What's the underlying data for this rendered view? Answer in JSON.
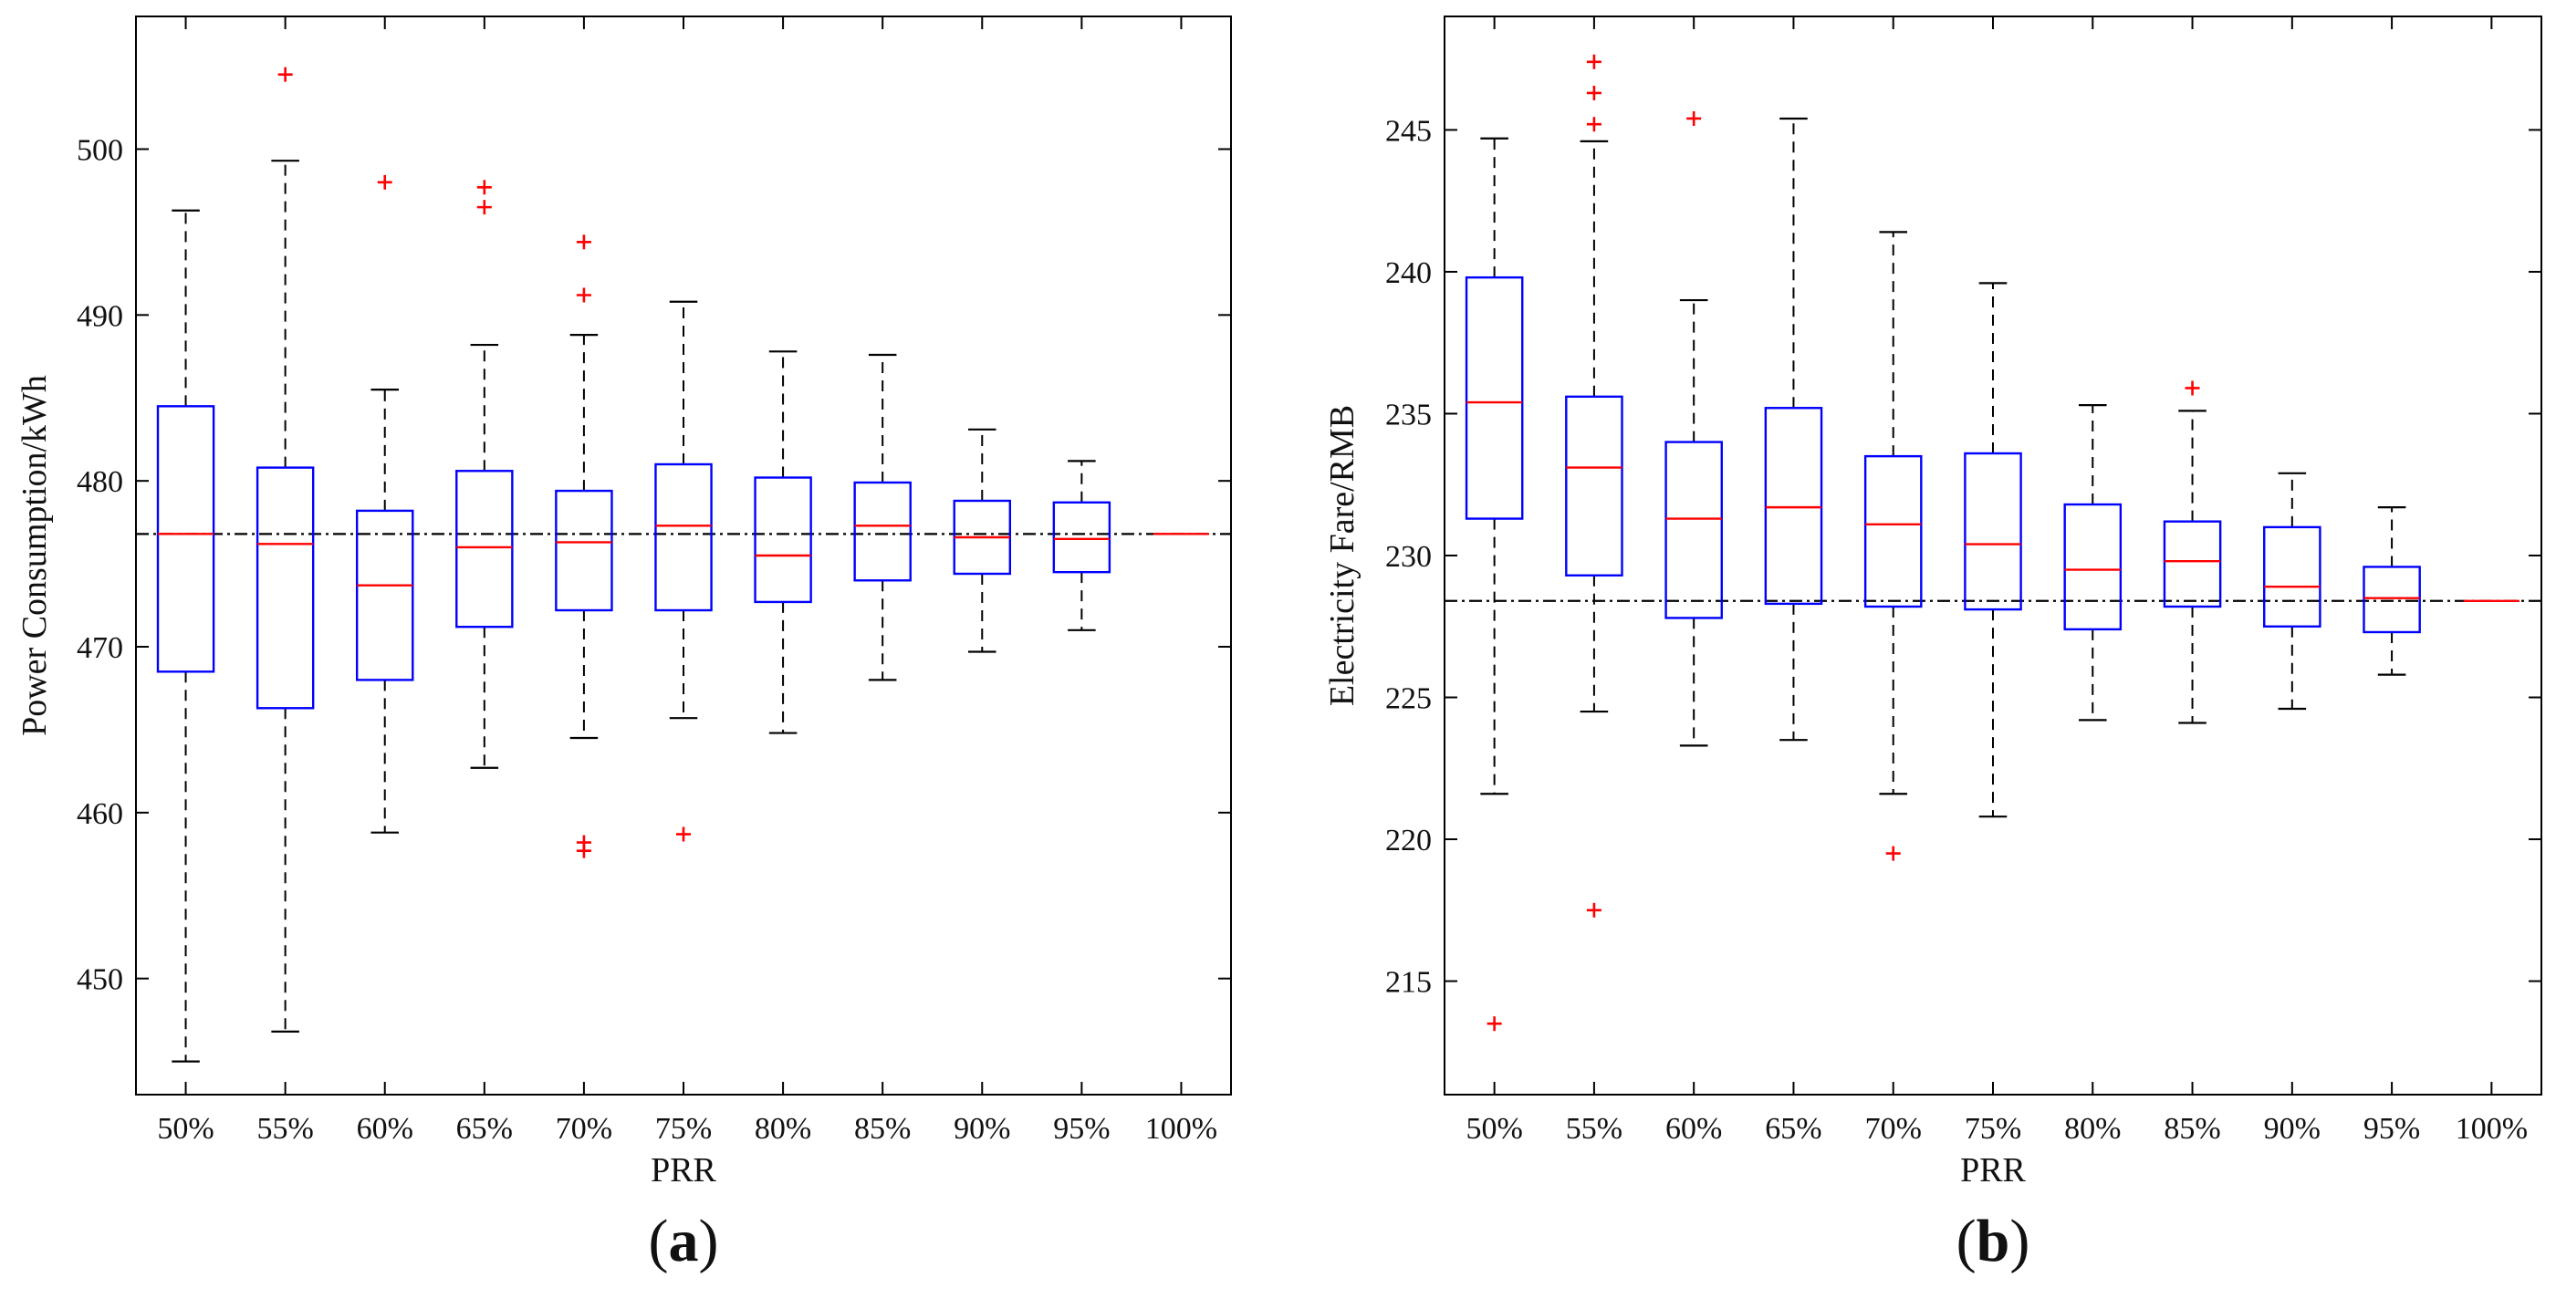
{
  "chart_data": [
    {
      "panel": "a",
      "type": "box",
      "xlabel": "PRR",
      "ylabel": "Power Consumption/kWh",
      "categories": [
        "50%",
        "55%",
        "60%",
        "65%",
        "70%",
        "75%",
        "80%",
        "85%",
        "90%",
        "95%",
        "100%"
      ],
      "ylim": [
        443,
        508
      ],
      "yticks": [
        450,
        460,
        470,
        480,
        490,
        500
      ],
      "reference_line": 476.8,
      "colors": {
        "box": "#0000ff",
        "median": "#ff0000",
        "whisker": "#000000",
        "outlier": "#ff0000",
        "reference": "#000000"
      },
      "boxes": [
        {
          "whisker_low": 445.0,
          "q1": 468.5,
          "median": 476.8,
          "q3": 484.5,
          "whisker_high": 496.3,
          "outliers": []
        },
        {
          "whisker_low": 446.8,
          "q1": 466.3,
          "median": 476.2,
          "q3": 480.8,
          "whisker_high": 499.3,
          "outliers": [
            504.5
          ]
        },
        {
          "whisker_low": 458.8,
          "q1": 468.0,
          "median": 473.7,
          "q3": 478.2,
          "whisker_high": 485.5,
          "outliers": [
            498.0
          ]
        },
        {
          "whisker_low": 462.7,
          "q1": 471.2,
          "median": 476.0,
          "q3": 480.6,
          "whisker_high": 488.2,
          "outliers": [
            496.5,
            497.7
          ]
        },
        {
          "whisker_low": 464.5,
          "q1": 472.2,
          "median": 476.3,
          "q3": 479.4,
          "whisker_high": 488.8,
          "outliers": [
            457.7,
            458.2,
            491.2,
            494.4
          ]
        },
        {
          "whisker_low": 465.7,
          "q1": 472.2,
          "median": 477.3,
          "q3": 481.0,
          "whisker_high": 490.8,
          "outliers": [
            458.7
          ]
        },
        {
          "whisker_low": 464.8,
          "q1": 472.7,
          "median": 475.5,
          "q3": 480.2,
          "whisker_high": 487.8,
          "outliers": []
        },
        {
          "whisker_low": 468.0,
          "q1": 474.0,
          "median": 477.3,
          "q3": 479.9,
          "whisker_high": 487.6,
          "outliers": []
        },
        {
          "whisker_low": 469.7,
          "q1": 474.4,
          "median": 476.6,
          "q3": 478.8,
          "whisker_high": 483.1,
          "outliers": []
        },
        {
          "whisker_low": 471.0,
          "q1": 474.5,
          "median": 476.5,
          "q3": 478.7,
          "whisker_high": 481.2,
          "outliers": []
        },
        {
          "whisker_low": 476.8,
          "q1": 476.8,
          "median": 476.8,
          "q3": 476.8,
          "whisker_high": 476.8,
          "outliers": []
        }
      ],
      "panel_label": "(a)"
    },
    {
      "panel": "b",
      "type": "box",
      "xlabel": "PRR",
      "ylabel": "Electricity Fare/RMB",
      "categories": [
        "50%",
        "55%",
        "60%",
        "65%",
        "70%",
        "75%",
        "80%",
        "85%",
        "90%",
        "95%",
        "100%"
      ],
      "ylim": [
        211,
        249
      ],
      "yticks": [
        215,
        220,
        225,
        230,
        235,
        240,
        245
      ],
      "reference_line": 228.4,
      "colors": {
        "box": "#0000ff",
        "median": "#ff0000",
        "whisker": "#000000",
        "outlier": "#ff0000",
        "reference": "#000000"
      },
      "boxes": [
        {
          "whisker_low": 221.6,
          "q1": 231.3,
          "median": 235.4,
          "q3": 239.8,
          "whisker_high": 244.7,
          "outliers": [
            213.5
          ]
        },
        {
          "whisker_low": 224.5,
          "q1": 229.3,
          "median": 233.1,
          "q3": 235.6,
          "whisker_high": 244.6,
          "outliers": [
            217.5,
            245.2,
            246.3,
            247.4
          ]
        },
        {
          "whisker_low": 223.3,
          "q1": 227.8,
          "median": 231.3,
          "q3": 234.0,
          "whisker_high": 239.0,
          "outliers": [
            245.4
          ]
        },
        {
          "whisker_low": 223.5,
          "q1": 228.3,
          "median": 231.7,
          "q3": 235.2,
          "whisker_high": 245.4,
          "outliers": []
        },
        {
          "whisker_low": 221.6,
          "q1": 228.2,
          "median": 231.1,
          "q3": 233.5,
          "whisker_high": 241.4,
          "outliers": [
            219.5
          ]
        },
        {
          "whisker_low": 220.8,
          "q1": 228.1,
          "median": 230.4,
          "q3": 233.6,
          "whisker_high": 239.6,
          "outliers": []
        },
        {
          "whisker_low": 224.2,
          "q1": 227.4,
          "median": 229.5,
          "q3": 231.8,
          "whisker_high": 235.3,
          "outliers": []
        },
        {
          "whisker_low": 224.1,
          "q1": 228.2,
          "median": 229.8,
          "q3": 231.2,
          "whisker_high": 235.1,
          "outliers": [
            235.9
          ]
        },
        {
          "whisker_low": 224.6,
          "q1": 227.5,
          "median": 228.9,
          "q3": 231.0,
          "whisker_high": 232.9,
          "outliers": []
        },
        {
          "whisker_low": 225.8,
          "q1": 227.3,
          "median": 228.5,
          "q3": 229.6,
          "whisker_high": 231.7,
          "outliers": []
        },
        {
          "whisker_low": 228.4,
          "q1": 228.4,
          "median": 228.4,
          "q3": 228.4,
          "whisker_high": 228.4,
          "outliers": []
        }
      ],
      "panel_label": "(b)"
    }
  ]
}
